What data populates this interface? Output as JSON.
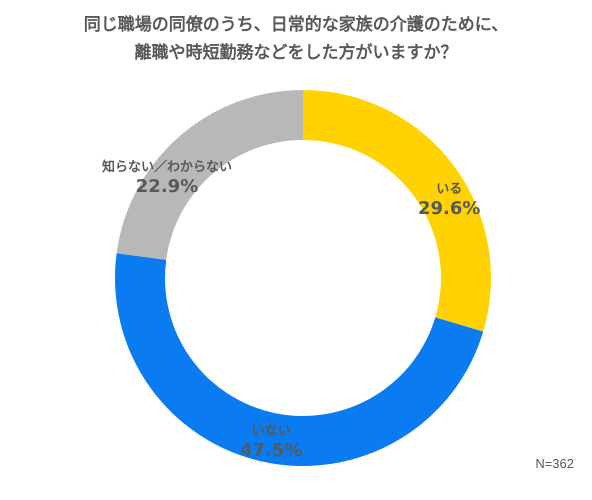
{
  "chart_data": {
    "type": "pie",
    "title_lines": [
      "同じ職場の同僚のうち、日常的な家族の介護のために、",
      "離職や時短勤務などをした方がいますか？"
    ],
    "slices": [
      {
        "label": "いる",
        "value": 29.6,
        "display": "29.6%",
        "color": "#FFD200"
      },
      {
        "label": "いない",
        "value": 47.5,
        "display": "47.5%",
        "color": "#0A7BF0"
      },
      {
        "label": "知らない／わからない",
        "value": 22.9,
        "display": "22.9%",
        "color": "#B8B8B8"
      }
    ],
    "donut": true,
    "start": "top",
    "direction": "clockwise",
    "note": "N=362"
  }
}
